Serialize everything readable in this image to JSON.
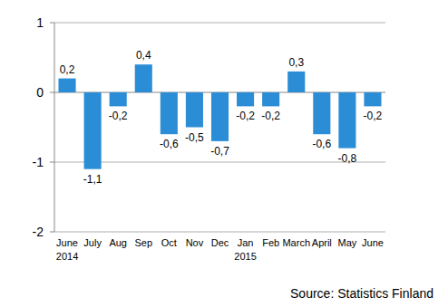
{
  "chart_data": {
    "type": "bar",
    "categories": [
      "June\n2014",
      "July",
      "Aug",
      "Sep",
      "Oct",
      "Nov",
      "Dec",
      "Jan\n2015",
      "Feb",
      "March",
      "April",
      "May",
      "June"
    ],
    "values": [
      0.2,
      -1.1,
      -0.2,
      0.4,
      -0.6,
      -0.5,
      -0.7,
      -0.2,
      -0.2,
      0.3,
      -0.6,
      -0.8,
      -0.2
    ],
    "value_labels": [
      "0,2",
      "-1,1",
      "-0,2",
      "0,4",
      "-0,6",
      "-0,5",
      "-0,7",
      "-0,2",
      "-0,2",
      "0,3",
      "-0,6",
      "-0,8",
      "-0,2"
    ],
    "data_labels": true,
    "color": "#2b8dd6",
    "ylim": [
      -2,
      1
    ],
    "yticks": [
      -2,
      -1,
      0,
      1
    ],
    "grid": true,
    "annotations": [
      {
        "text": "Source: Statistics Finland"
      }
    ]
  }
}
